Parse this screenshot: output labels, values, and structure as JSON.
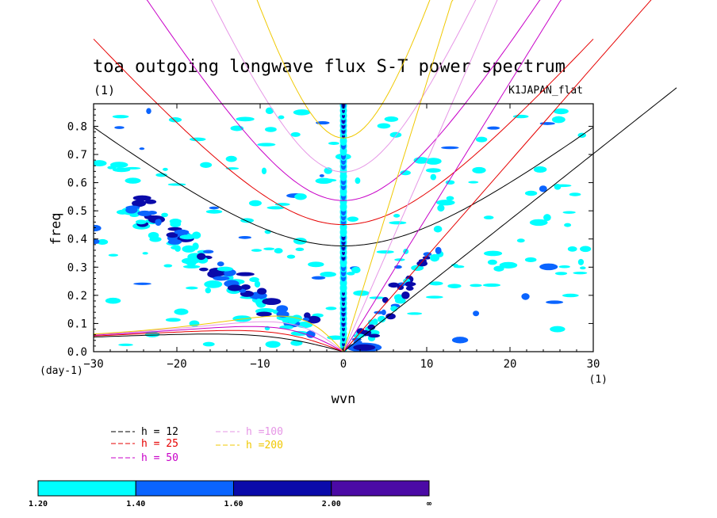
{
  "chart_data": {
    "type": "heatmap",
    "title": "toa outgoing longwave flux S-T power spectrum",
    "subtitle_left": "(1)",
    "subtitle_right": "K1JAPAN_flat",
    "xlabel": "wvn",
    "ylabel": "freq",
    "x_unit_label": "(1)",
    "y_unit_label": "(day-1)",
    "xlim": [
      -30,
      30
    ],
    "ylim": [
      0,
      0.88
    ],
    "x_ticks": [
      -30,
      -20,
      -10,
      0,
      10,
      20,
      30
    ],
    "y_ticks": [
      0.0,
      0.1,
      0.2,
      0.3,
      0.4,
      0.5,
      0.6,
      0.7,
      0.8
    ],
    "x_tick_labels": [
      "−30",
      "−20",
      "−10",
      "0",
      "10",
      "20",
      "30"
    ],
    "y_tick_labels": [
      "0.0",
      "0.1",
      "0.2",
      "0.3",
      "0.4",
      "0.5",
      "0.6",
      "0.7",
      "0.8"
    ],
    "contour_levels": [
      "1.20",
      "1.40",
      "1.60",
      "2.00",
      "∞"
    ],
    "contour_colors": [
      "#00ffff",
      "#0a64ff",
      "#0a0aaa",
      "#4b0aa5"
    ],
    "dispersion_curves": [
      {
        "label": "h = 12",
        "color": "#000000",
        "equivalent_depth": 12
      },
      {
        "label": "h = 25",
        "color": "#e60000",
        "equivalent_depth": 25
      },
      {
        "label": "h = 50",
        "color": "#c800c8",
        "equivalent_depth": 50
      },
      {
        "label": "h =100",
        "color": "#e696e6",
        "equivalent_depth": 100
      },
      {
        "label": "h =200",
        "color": "#f0c800",
        "equivalent_depth": 200
      }
    ],
    "features": [
      {
        "name": "zonal-mean-column",
        "x": 0,
        "y_range": [
          0,
          0.88
        ]
      },
      {
        "name": "westward-band",
        "x_range": [
          -25,
          -5
        ],
        "y_range": [
          0.05,
          0.55
        ]
      },
      {
        "name": "kelvin-band",
        "x_range": [
          2,
          10
        ],
        "y_range": [
          0.0,
          0.35
        ]
      }
    ]
  }
}
